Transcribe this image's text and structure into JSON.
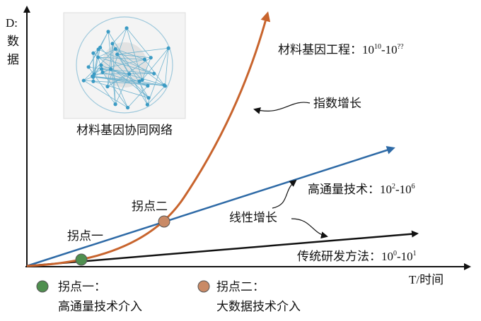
{
  "axes": {
    "y_label": [
      "D:",
      "数",
      "据"
    ],
    "x_label": "T/时间"
  },
  "network": {
    "caption": "材料基因协同网络"
  },
  "annotations": {
    "exponential": "指数增长",
    "linear": "线性增长",
    "inflection_1": "拐点一",
    "inflection_2": "拐点二"
  },
  "methods": [
    {
      "name": "材料基因工程：",
      "range": [
        "10",
        "10",
        "-10",
        "??"
      ],
      "color": "#c8642d"
    },
    {
      "name": "高通量技术：",
      "range": [
        "10",
        "2",
        "-10",
        "6"
      ],
      "color": "#2e6aa6"
    },
    {
      "name": "传统研发方法：",
      "range": [
        "10",
        "0",
        "-10",
        "1"
      ],
      "color": "#111111"
    }
  ],
  "legend": [
    {
      "title": "拐点一：",
      "description": "高通量技术介入",
      "color": "#4f8f4f"
    },
    {
      "title": "拐点二：",
      "description": "大数据技术介入",
      "color": "#c98a66"
    }
  ]
}
